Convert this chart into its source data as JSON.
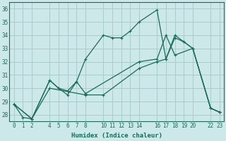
{
  "xlabel": "Humidex (Indice chaleur)",
  "bg_color": "#cce8e8",
  "grid_color": "#aacccc",
  "line_color": "#1a6b5a",
  "xlim": [
    -0.5,
    23.5
  ],
  "ylim": [
    27.5,
    36.5
  ],
  "xticks": [
    0,
    1,
    2,
    4,
    5,
    6,
    7,
    8,
    10,
    11,
    12,
    13,
    14,
    16,
    17,
    18,
    19,
    20,
    22,
    23
  ],
  "yticks": [
    28,
    29,
    30,
    31,
    32,
    33,
    34,
    35,
    36
  ],
  "line1_x": [
    0,
    1,
    2,
    4,
    5,
    6,
    7,
    8,
    10,
    11,
    12,
    13,
    14,
    16,
    17,
    18,
    19,
    20,
    22,
    23
  ],
  "line1_y": [
    28.8,
    27.8,
    27.7,
    30.6,
    30.0,
    29.8,
    30.5,
    32.2,
    34.0,
    33.8,
    33.8,
    34.3,
    35.0,
    35.9,
    32.2,
    34.0,
    33.5,
    33.0,
    28.5,
    28.2
  ],
  "line2_x": [
    0,
    2,
    4,
    5,
    6,
    7,
    8,
    14,
    16,
    17,
    18,
    20,
    22,
    23
  ],
  "line2_y": [
    28.8,
    27.7,
    30.6,
    30.0,
    29.5,
    30.5,
    29.6,
    32.0,
    32.2,
    34.0,
    32.5,
    33.0,
    28.5,
    28.2
  ],
  "line3_x": [
    0,
    2,
    4,
    8,
    10,
    14,
    16,
    17,
    18,
    19,
    20,
    22,
    23
  ],
  "line3_y": [
    28.8,
    27.7,
    30.0,
    29.5,
    29.5,
    31.5,
    32.0,
    32.2,
    33.8,
    33.5,
    33.0,
    28.5,
    28.2
  ]
}
